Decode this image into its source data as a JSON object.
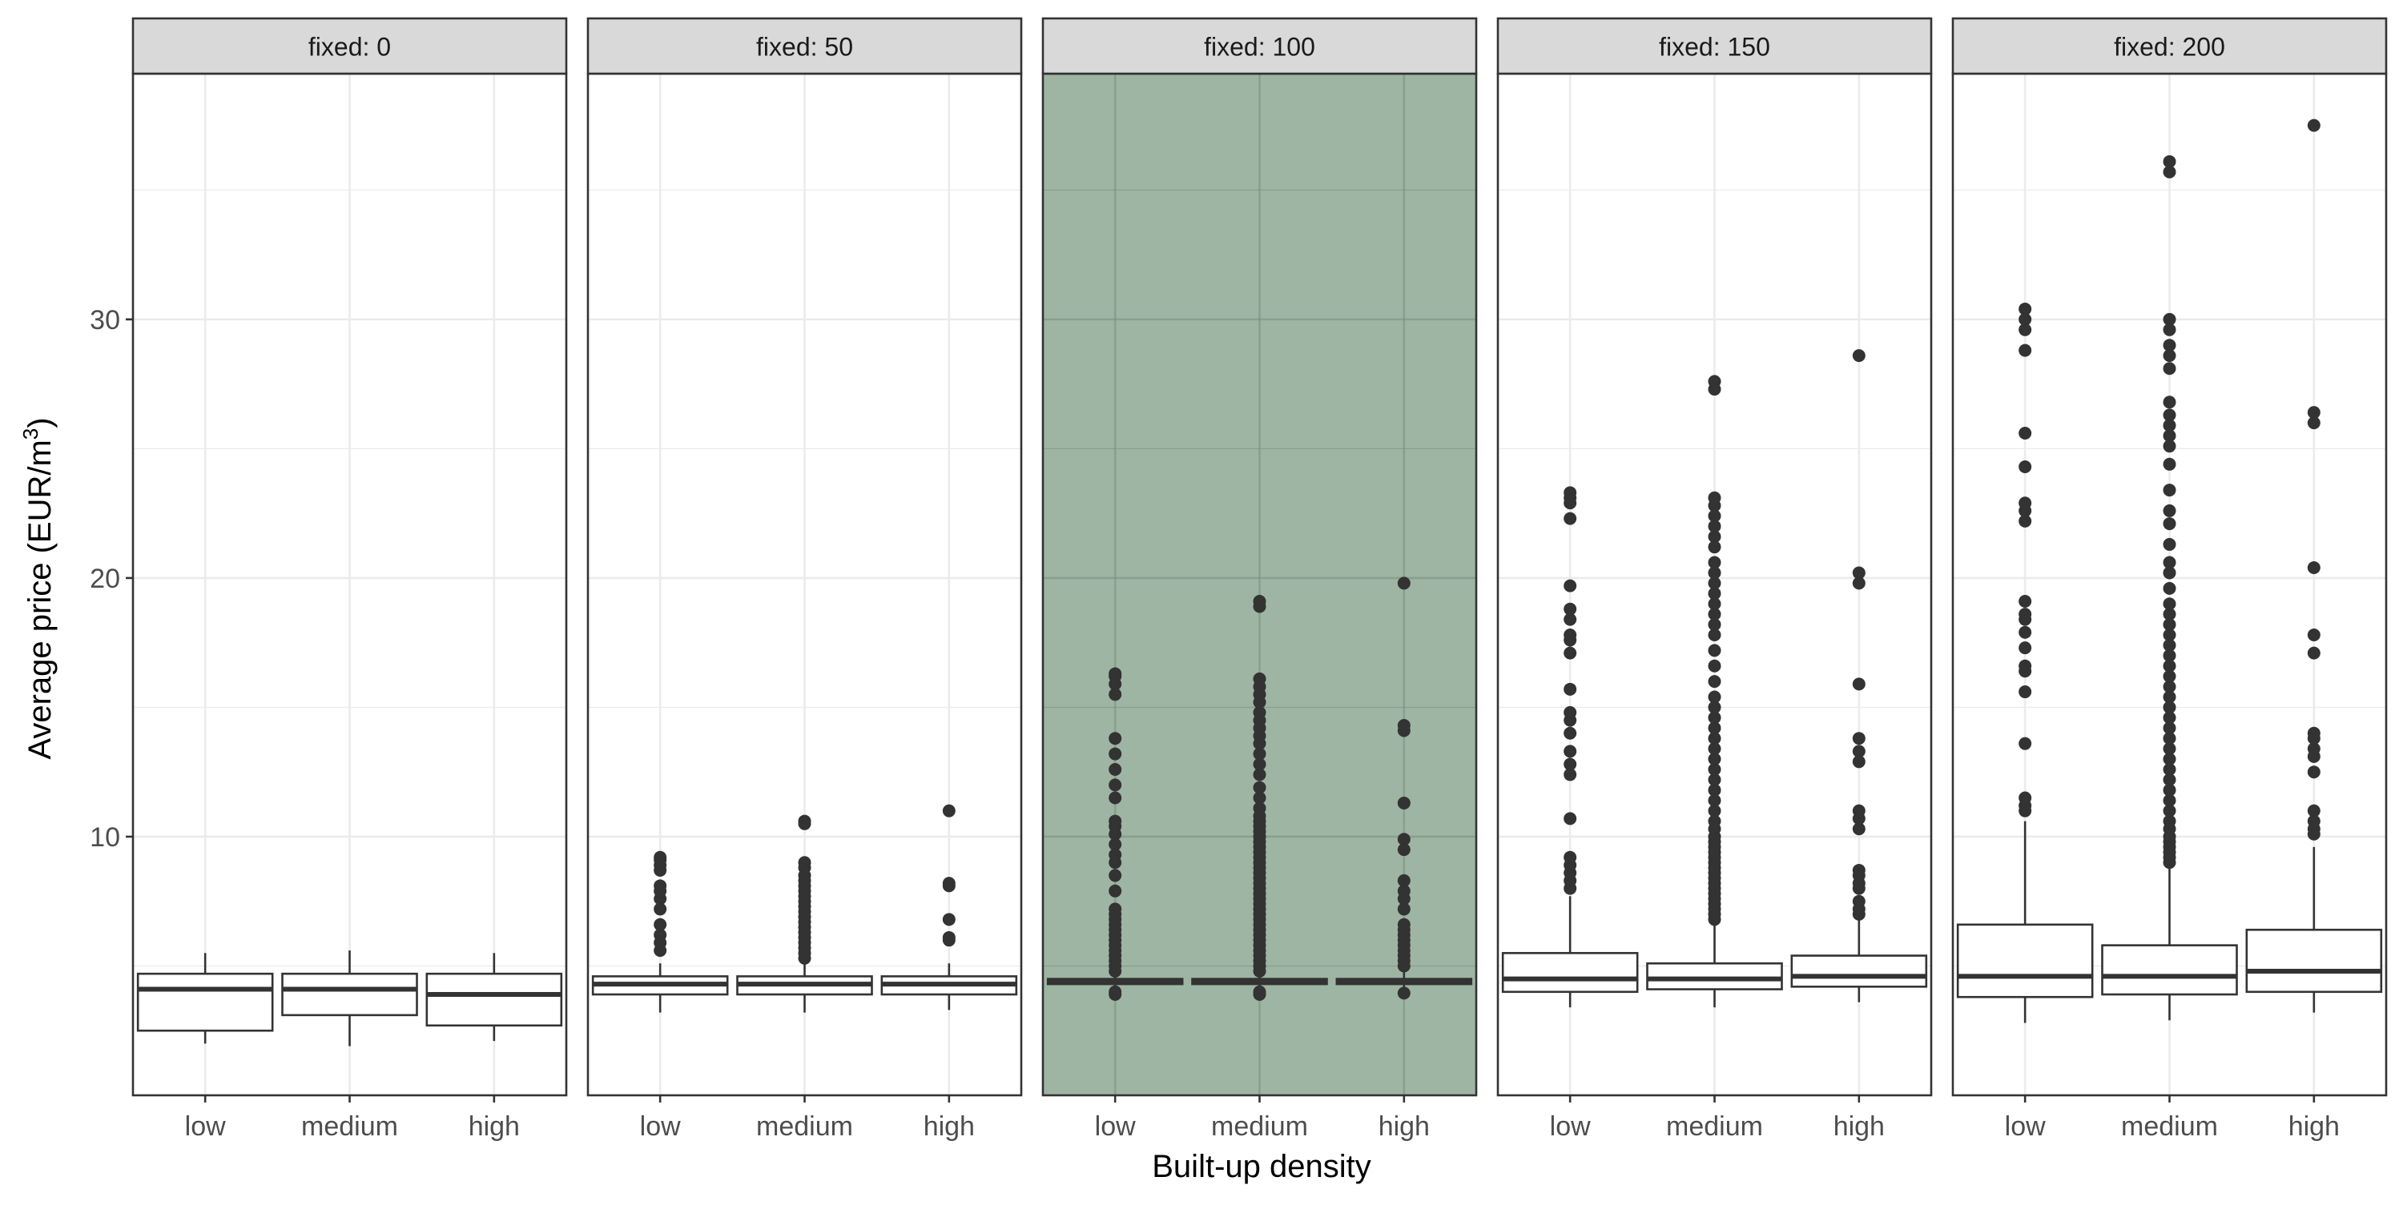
{
  "chart_data": {
    "type": "boxplot",
    "xlabel": "Built-up density",
    "ylabel_main": "Average price (EUR/m",
    "ylabel_sup": "3",
    "ylabel_close": ")",
    "categories": [
      "low",
      "medium",
      "high"
    ],
    "ylim": [
      0,
      39.5
    ],
    "yticks": [
      10,
      20,
      30
    ],
    "grid": true,
    "highlight_fill": "#9fb5a4",
    "facets": [
      {
        "label": "fixed: 0",
        "highlighted": false,
        "boxes": [
          {
            "category": "low",
            "min": 2.0,
            "q1": 2.5,
            "median": 4.1,
            "q3": 4.7,
            "max": 5.5,
            "outliers": []
          },
          {
            "category": "medium",
            "min": 1.9,
            "q1": 3.1,
            "median": 4.1,
            "q3": 4.7,
            "max": 5.6,
            "outliers": []
          },
          {
            "category": "high",
            "min": 2.1,
            "q1": 2.7,
            "median": 3.9,
            "q3": 4.7,
            "max": 5.5,
            "outliers": []
          }
        ]
      },
      {
        "label": "fixed: 50",
        "highlighted": false,
        "boxes": [
          {
            "category": "low",
            "min": 3.2,
            "q1": 3.9,
            "median": 4.3,
            "q3": 4.6,
            "max": 5.1,
            "outliers": [
              5.6,
              5.9,
              6.2,
              6.6,
              7.2,
              7.6,
              7.9,
              8.1,
              8.7,
              8.9,
              9.1,
              9.2
            ]
          },
          {
            "category": "medium",
            "min": 3.2,
            "q1": 3.9,
            "median": 4.3,
            "q3": 4.6,
            "max": 5.1,
            "outliers": [
              5.3,
              5.5,
              5.7,
              5.9,
              6.1,
              6.3,
              6.5,
              6.7,
              6.9,
              7.1,
              7.3,
              7.5,
              7.7,
              7.9,
              8.1,
              8.3,
              8.5,
              8.8,
              9.0,
              10.5,
              10.6
            ]
          },
          {
            "category": "high",
            "min": 3.3,
            "q1": 3.9,
            "median": 4.3,
            "q3": 4.6,
            "max": 5.1,
            "outliers": [
              6.0,
              6.1,
              6.8,
              8.1,
              8.2,
              11.0
            ]
          }
        ]
      },
      {
        "label": "fixed: 100",
        "highlighted": true,
        "boxes": [
          {
            "category": "low",
            "min": 3.8,
            "q1": 4.3,
            "median": 4.4,
            "q3": 4.5,
            "max": 4.7,
            "outliers": [
              3.9,
              4.0,
              4.8,
              5.0,
              5.2,
              5.4,
              5.6,
              5.8,
              6.0,
              6.2,
              6.4,
              6.6,
              6.8,
              7.0,
              7.2,
              7.9,
              8.5,
              9.0,
              9.3,
              9.7,
              10.1,
              10.4,
              10.6,
              11.5,
              12.0,
              12.6,
              13.2,
              13.8,
              15.5,
              15.9,
              16.2,
              16.3
            ]
          },
          {
            "category": "medium",
            "min": 3.8,
            "q1": 4.3,
            "median": 4.4,
            "q3": 4.5,
            "max": 4.7,
            "outliers": [
              3.9,
              4.0,
              4.8,
              5.0,
              5.2,
              5.4,
              5.6,
              5.8,
              6.0,
              6.2,
              6.4,
              6.6,
              6.8,
              7.0,
              7.2,
              7.4,
              7.6,
              7.8,
              8.0,
              8.2,
              8.4,
              8.6,
              8.8,
              9.0,
              9.2,
              9.4,
              9.6,
              9.8,
              10.0,
              10.2,
              10.4,
              10.6,
              10.8,
              11.1,
              11.5,
              11.9,
              12.4,
              12.8,
              13.2,
              13.6,
              13.9,
              14.2,
              14.5,
              14.8,
              15.2,
              15.5,
              15.8,
              16.1,
              18.9,
              19.1
            ]
          },
          {
            "category": "high",
            "min": 3.9,
            "q1": 4.3,
            "median": 4.4,
            "q3": 4.5,
            "max": 4.8,
            "outliers": [
              3.95,
              5.0,
              5.2,
              5.4,
              5.6,
              5.8,
              6.0,
              6.2,
              6.4,
              6.6,
              7.2,
              7.6,
              7.9,
              8.3,
              9.5,
              9.9,
              11.3,
              14.1,
              14.3,
              19.8
            ]
          }
        ]
      },
      {
        "label": "fixed: 150",
        "highlighted": false,
        "boxes": [
          {
            "category": "low",
            "min": 3.4,
            "q1": 4.0,
            "median": 4.5,
            "q3": 5.5,
            "max": 7.7,
            "outliers": [
              8.0,
              8.3,
              8.6,
              8.9,
              9.2,
              10.7,
              12.4,
              12.8,
              13.3,
              14.0,
              14.5,
              14.8,
              15.7,
              17.1,
              17.6,
              17.8,
              18.4,
              18.8,
              19.7,
              22.3,
              22.9,
              23.1,
              23.3
            ]
          },
          {
            "category": "medium",
            "min": 3.4,
            "q1": 4.1,
            "median": 4.5,
            "q3": 5.1,
            "max": 6.6,
            "outliers": [
              6.8,
              7.0,
              7.2,
              7.4,
              7.6,
              7.8,
              8.0,
              8.2,
              8.4,
              8.6,
              8.8,
              9.0,
              9.2,
              9.4,
              9.6,
              9.8,
              10.0,
              10.3,
              10.6,
              11.0,
              11.4,
              11.8,
              12.2,
              12.6,
              13.0,
              13.4,
              13.8,
              14.2,
              14.6,
              15.0,
              15.4,
              16.0,
              16.6,
              17.2,
              17.8,
              18.2,
              18.6,
              19.0,
              19.4,
              19.8,
              20.2,
              20.6,
              21.2,
              21.6,
              22.0,
              22.4,
              22.8,
              23.1,
              27.3,
              27.6
            ]
          },
          {
            "category": "high",
            "min": 3.6,
            "q1": 4.2,
            "median": 4.6,
            "q3": 5.4,
            "max": 6.9,
            "outliers": [
              7.0,
              7.2,
              7.5,
              8.0,
              8.2,
              8.5,
              8.7,
              10.3,
              10.7,
              11.0,
              12.9,
              13.3,
              13.8,
              15.9,
              19.8,
              20.2,
              28.6
            ]
          }
        ]
      },
      {
        "label": "fixed: 200",
        "highlighted": false,
        "boxes": [
          {
            "category": "low",
            "min": 2.8,
            "q1": 3.8,
            "median": 4.6,
            "q3": 6.6,
            "max": 10.6,
            "outliers": [
              11.0,
              11.2,
              11.5,
              13.6,
              15.6,
              16.4,
              16.6,
              17.3,
              17.9,
              18.4,
              18.6,
              19.1,
              22.2,
              22.6,
              22.9,
              24.3,
              25.6,
              28.8,
              29.6,
              30.0,
              30.4
            ]
          },
          {
            "category": "medium",
            "min": 2.9,
            "q1": 3.9,
            "median": 4.6,
            "q3": 5.8,
            "max": 8.8,
            "outliers": [
              9.0,
              9.2,
              9.4,
              9.6,
              9.8,
              10.0,
              10.3,
              10.6,
              11.0,
              11.4,
              11.8,
              12.2,
              12.6,
              13.0,
              13.4,
              13.8,
              14.2,
              14.6,
              15.0,
              15.4,
              15.8,
              16.2,
              16.6,
              17.0,
              17.4,
              17.8,
              18.2,
              18.6,
              19.0,
              19.6,
              20.2,
              20.6,
              21.3,
              22.1,
              22.6,
              23.4,
              24.4,
              25.1,
              25.5,
              25.9,
              26.3,
              26.8,
              28.1,
              28.6,
              29.0,
              29.6,
              30.0,
              35.7,
              36.1
            ]
          },
          {
            "category": "high",
            "min": 3.2,
            "q1": 4.0,
            "median": 4.8,
            "q3": 6.4,
            "max": 9.6,
            "outliers": [
              10.1,
              10.3,
              10.6,
              11.0,
              12.5,
              13.1,
              13.4,
              13.8,
              14.0,
              17.1,
              17.8,
              20.4,
              26.0,
              26.4,
              37.5
            ]
          }
        ]
      }
    ]
  }
}
